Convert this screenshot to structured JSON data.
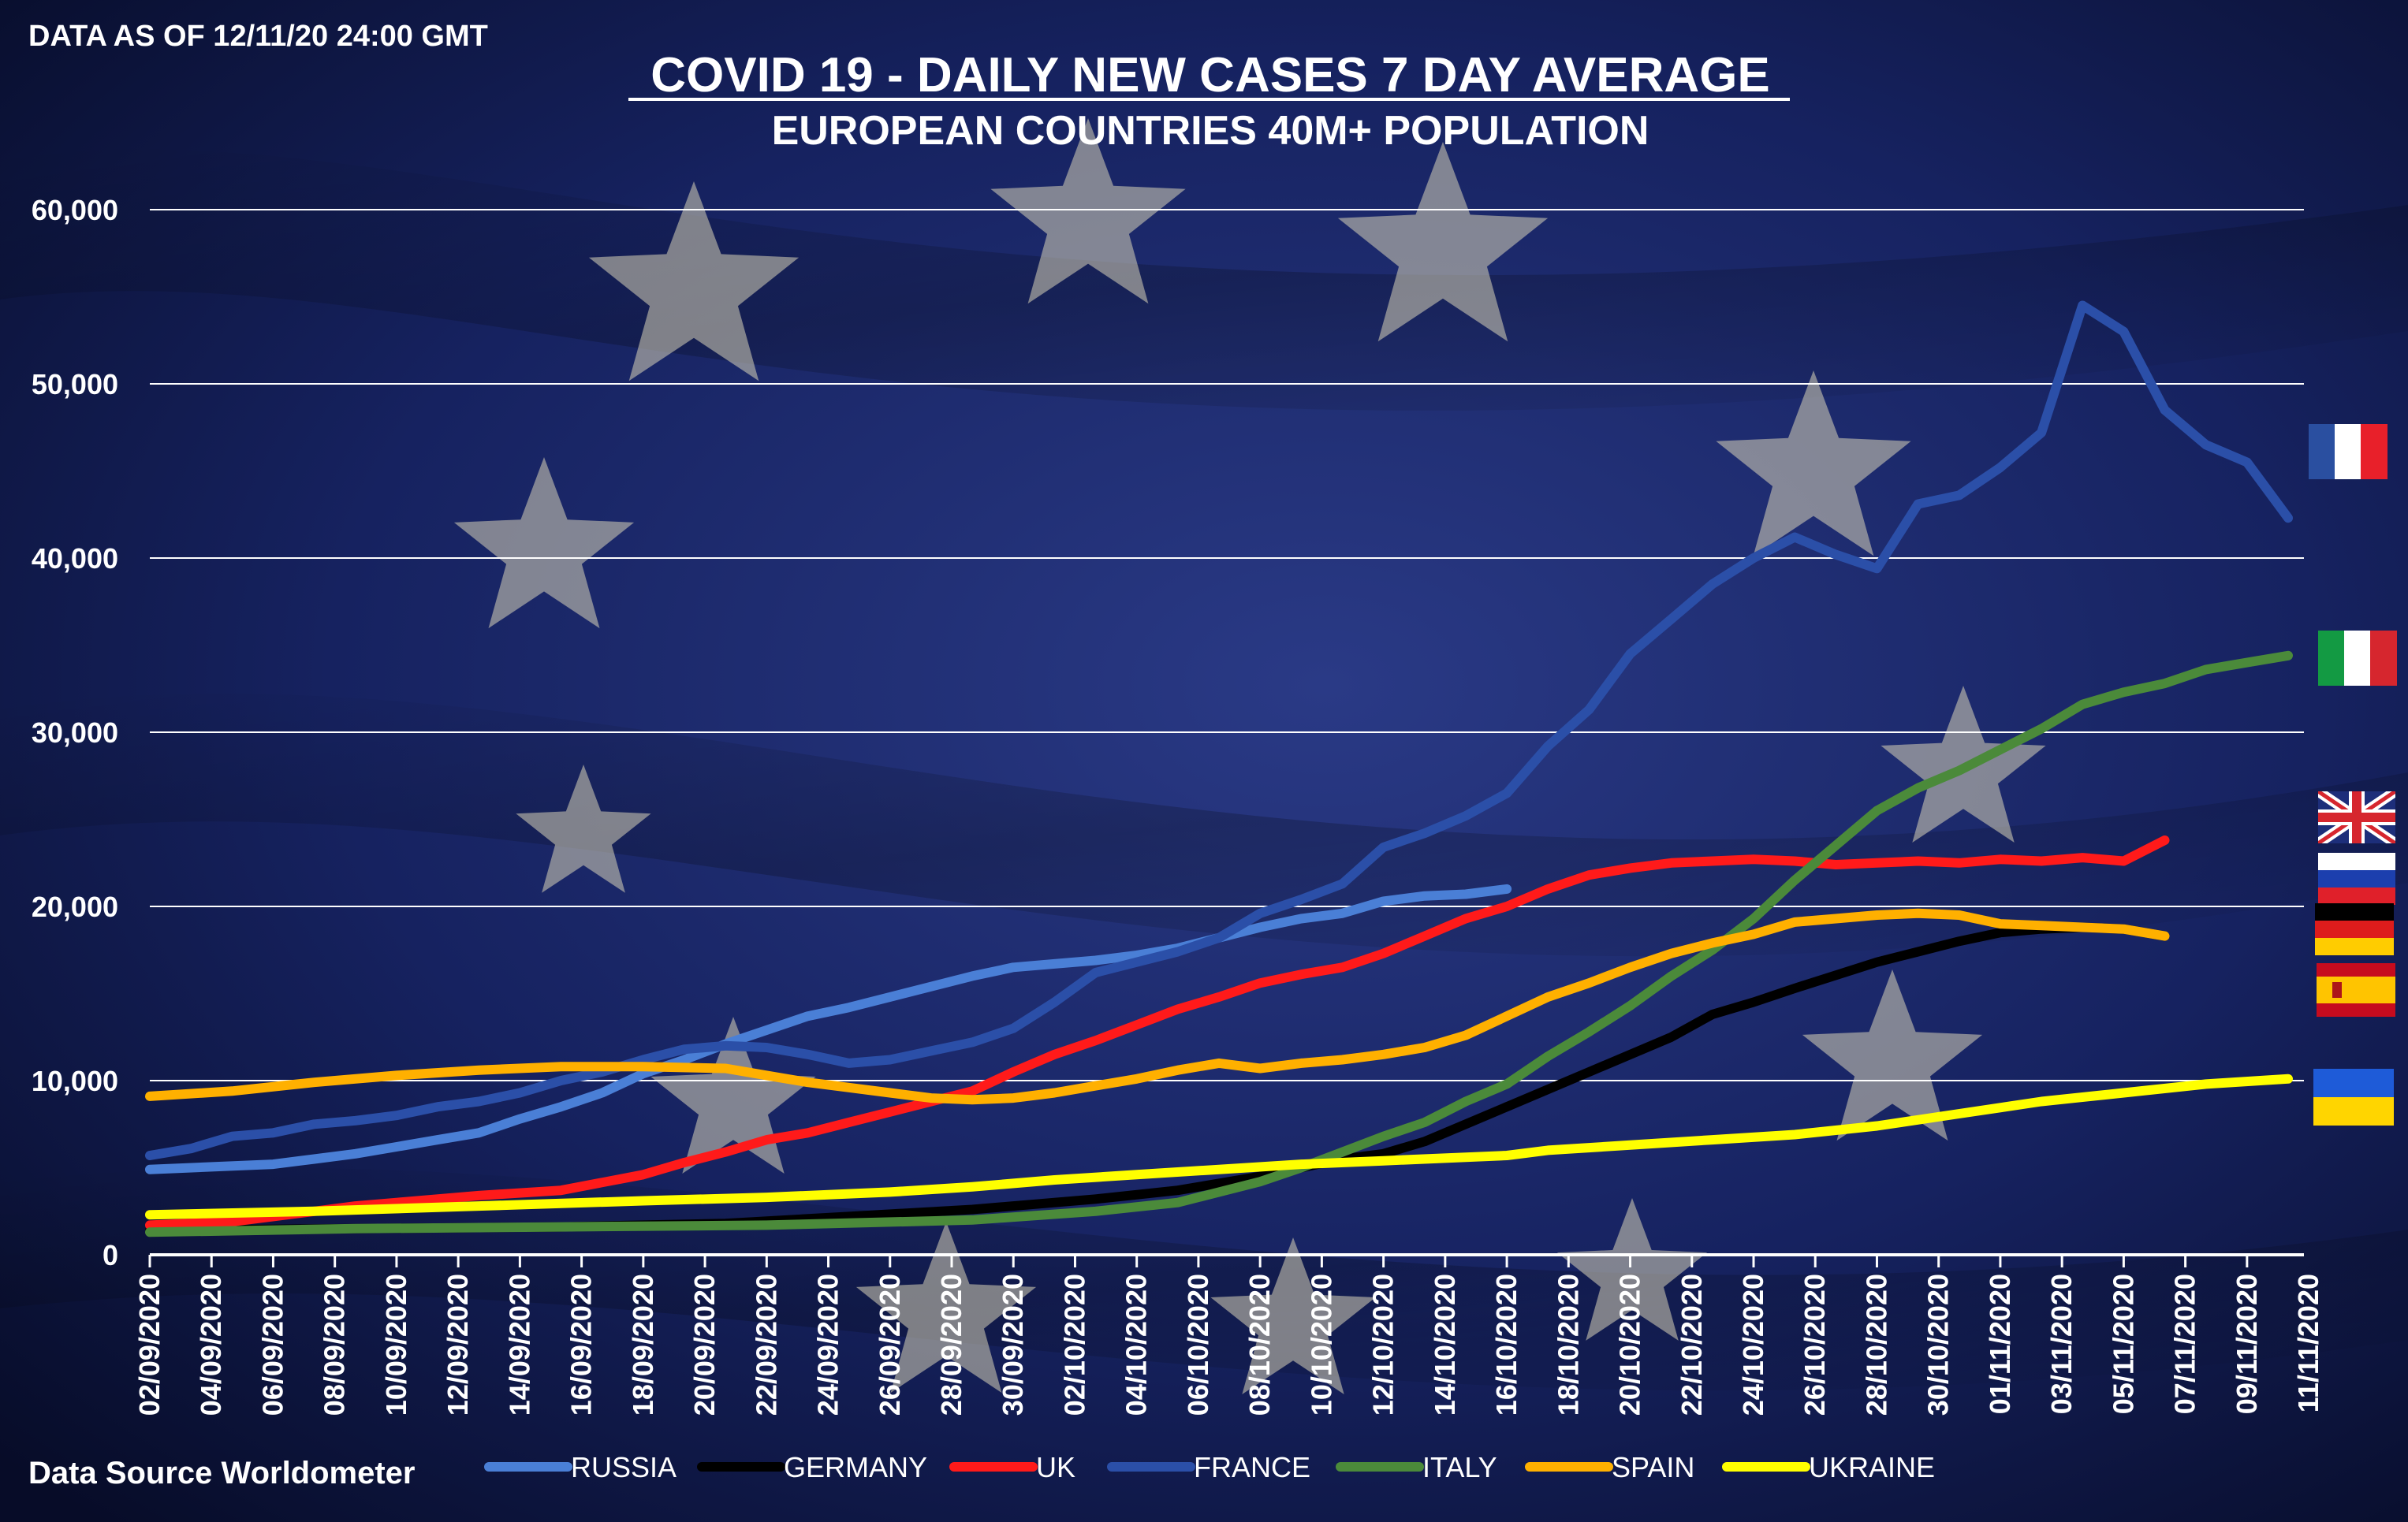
{
  "header": {
    "asof": "DATA AS OF 12/11/20 24:00 GMT",
    "title": "COVID 19 - DAILY NEW CASES 7 DAY AVERAGE",
    "subtitle": "EUROPEAN COUNTRIES 40M+ POPULATION"
  },
  "footer": {
    "source": "Data Source Worldometer"
  },
  "colors": {
    "background": "#0f1a44",
    "gridline": "#ffffff",
    "text": "#ffffff",
    "star": "#d8d4b8"
  },
  "flags": [
    {
      "country": "France",
      "icon": "france-flag-icon"
    },
    {
      "country": "Italy",
      "icon": "italy-flag-icon"
    },
    {
      "country": "UK",
      "icon": "uk-flag-icon"
    },
    {
      "country": "Russia",
      "icon": "russia-flag-icon"
    },
    {
      "country": "Germany",
      "icon": "germany-flag-icon"
    },
    {
      "country": "Spain",
      "icon": "spain-flag-icon"
    },
    {
      "country": "Ukraine",
      "icon": "ukraine-flag-icon"
    }
  ],
  "chart_data": {
    "type": "line",
    "title": "COVID 19 - DAILY NEW CASES 7 DAY AVERAGE",
    "subtitle": "EUROPEAN COUNTRIES 40M+ POPULATION",
    "xlabel": "",
    "ylabel": "",
    "ylim": [
      0,
      60000
    ],
    "yticks": [
      0,
      10000,
      20000,
      30000,
      40000,
      50000,
      60000
    ],
    "ytick_labels": [
      "0",
      "10,000",
      "20,000",
      "30,000",
      "40,000",
      "50,000",
      "60,000"
    ],
    "grid": true,
    "legend_position": "bottom",
    "x_tick_labels": [
      "02/09/2020",
      "04/09/2020",
      "06/09/2020",
      "08/09/2020",
      "10/09/2020",
      "12/09/2020",
      "14/09/2020",
      "16/09/2020",
      "18/09/2020",
      "20/09/2020",
      "22/09/2020",
      "24/09/2020",
      "26/09/2020",
      "28/09/2020",
      "30/09/2020",
      "02/10/2020",
      "04/10/2020",
      "06/10/2020",
      "08/10/2020",
      "10/10/2020",
      "12/10/2020",
      "14/10/2020",
      "16/10/2020",
      "18/10/2020",
      "20/10/2020",
      "22/10/2020",
      "24/10/2020",
      "26/10/2020",
      "28/10/2020",
      "30/10/2020",
      "01/11/2020",
      "03/11/2020",
      "05/11/2020",
      "07/11/2020",
      "09/11/2020",
      "11/11/2020"
    ],
    "series": [
      {
        "name": "RUSSIA",
        "color": "#4a7fd6",
        "width": 12,
        "anchors": [
          [
            0,
            4900
          ],
          [
            6,
            5200
          ],
          [
            8,
            5500
          ],
          [
            10,
            5800
          ],
          [
            12,
            6200
          ],
          [
            14,
            6600
          ],
          [
            16,
            7000
          ],
          [
            18,
            7800
          ],
          [
            20,
            8500
          ],
          [
            22,
            9300
          ],
          [
            24,
            10400
          ],
          [
            26,
            11200
          ],
          [
            28,
            12100
          ],
          [
            30,
            12900
          ],
          [
            32,
            13700
          ],
          [
            34,
            14200
          ],
          [
            36,
            14800
          ],
          [
            38,
            15400
          ],
          [
            40,
            16000
          ],
          [
            42,
            16500
          ],
          [
            44,
            16700
          ],
          [
            46,
            16900
          ],
          [
            48,
            17200
          ],
          [
            50,
            17600
          ],
          [
            52,
            18200
          ],
          [
            54,
            18800
          ],
          [
            56,
            19300
          ],
          [
            58,
            19600
          ],
          [
            60,
            20300
          ],
          [
            62,
            20600
          ],
          [
            64,
            20700
          ],
          [
            66,
            21000
          ]
        ]
      },
      {
        "name": "GERMANY",
        "color": "#000000",
        "width": 12,
        "anchors": [
          [
            0,
            1400
          ],
          [
            10,
            1500
          ],
          [
            20,
            1600
          ],
          [
            28,
            1800
          ],
          [
            34,
            2200
          ],
          [
            40,
            2600
          ],
          [
            46,
            3200
          ],
          [
            50,
            3700
          ],
          [
            54,
            4500
          ],
          [
            58,
            5500
          ],
          [
            60,
            5800
          ],
          [
            62,
            6500
          ],
          [
            66,
            8500
          ],
          [
            70,
            10500
          ],
          [
            74,
            12500
          ],
          [
            76,
            13800
          ],
          [
            78,
            14500
          ],
          [
            80,
            15300
          ],
          [
            84,
            16800
          ],
          [
            86,
            17400
          ],
          [
            88,
            18000
          ],
          [
            90,
            18500
          ],
          [
            92,
            18700
          ],
          [
            94,
            18800
          ],
          [
            96,
            18700
          ],
          [
            98,
            18300
          ]
        ]
      },
      {
        "name": "UK",
        "color": "#ff1a1a",
        "width": 12,
        "anchors": [
          [
            0,
            1700
          ],
          [
            4,
            1900
          ],
          [
            8,
            2500
          ],
          [
            10,
            2800
          ],
          [
            12,
            3000
          ],
          [
            16,
            3400
          ],
          [
            20,
            3700
          ],
          [
            24,
            4600
          ],
          [
            26,
            5300
          ],
          [
            28,
            5900
          ],
          [
            30,
            6600
          ],
          [
            32,
            7000
          ],
          [
            34,
            7600
          ],
          [
            36,
            8200
          ],
          [
            38,
            8800
          ],
          [
            40,
            9400
          ],
          [
            42,
            10500
          ],
          [
            44,
            11500
          ],
          [
            46,
            12300
          ],
          [
            48,
            13200
          ],
          [
            50,
            14100
          ],
          [
            52,
            14800
          ],
          [
            54,
            15600
          ],
          [
            56,
            16100
          ],
          [
            58,
            16500
          ],
          [
            60,
            17300
          ],
          [
            62,
            18300
          ],
          [
            64,
            19300
          ],
          [
            66,
            20000
          ],
          [
            68,
            21000
          ],
          [
            70,
            21800
          ],
          [
            72,
            22200
          ],
          [
            74,
            22500
          ],
          [
            76,
            22600
          ],
          [
            78,
            22700
          ],
          [
            80,
            22600
          ],
          [
            82,
            22400
          ],
          [
            84,
            22500
          ],
          [
            86,
            22600
          ],
          [
            88,
            22500
          ],
          [
            90,
            22700
          ],
          [
            92,
            22600
          ],
          [
            94,
            22800
          ],
          [
            96,
            22600
          ],
          [
            98,
            23800
          ]
        ]
      },
      {
        "name": "FRANCE",
        "color": "#2b4fa8",
        "width": 12,
        "anchors": [
          [
            0,
            5700
          ],
          [
            2,
            6100
          ],
          [
            4,
            6800
          ],
          [
            6,
            7000
          ],
          [
            8,
            7500
          ],
          [
            10,
            7700
          ],
          [
            12,
            8000
          ],
          [
            14,
            8500
          ],
          [
            16,
            8800
          ],
          [
            18,
            9300
          ],
          [
            20,
            10000
          ],
          [
            22,
            10500
          ],
          [
            24,
            11200
          ],
          [
            26,
            11800
          ],
          [
            28,
            12000
          ],
          [
            30,
            11900
          ],
          [
            32,
            11500
          ],
          [
            34,
            11000
          ],
          [
            36,
            11200
          ],
          [
            38,
            11700
          ],
          [
            40,
            12200
          ],
          [
            42,
            13000
          ],
          [
            44,
            14500
          ],
          [
            46,
            16200
          ],
          [
            48,
            16800
          ],
          [
            50,
            17400
          ],
          [
            52,
            18200
          ],
          [
            54,
            19600
          ],
          [
            56,
            20400
          ],
          [
            58,
            21300
          ],
          [
            60,
            23400
          ],
          [
            62,
            24200
          ],
          [
            64,
            25200
          ],
          [
            66,
            26500
          ],
          [
            68,
            29200
          ],
          [
            70,
            31300
          ],
          [
            72,
            34500
          ],
          [
            74,
            36500
          ],
          [
            76,
            38500
          ],
          [
            78,
            40000
          ],
          [
            80,
            41200
          ],
          [
            82,
            40200
          ],
          [
            84,
            39400
          ],
          [
            86,
            43100
          ],
          [
            88,
            43600
          ],
          [
            90,
            45200
          ],
          [
            92,
            47200
          ],
          [
            94,
            54500
          ],
          [
            96,
            53000
          ],
          [
            98,
            48500
          ],
          [
            100,
            46500
          ],
          [
            102,
            45500
          ],
          [
            104,
            42300
          ]
        ]
      },
      {
        "name": "ITALY",
        "color": "#4b8a3a",
        "width": 12,
        "anchors": [
          [
            0,
            1300
          ],
          [
            10,
            1500
          ],
          [
            20,
            1600
          ],
          [
            30,
            1700
          ],
          [
            40,
            2000
          ],
          [
            46,
            2500
          ],
          [
            50,
            3000
          ],
          [
            52,
            3600
          ],
          [
            54,
            4200
          ],
          [
            56,
            5000
          ],
          [
            58,
            5900
          ],
          [
            60,
            6800
          ],
          [
            62,
            7600
          ],
          [
            64,
            8800
          ],
          [
            66,
            9800
          ],
          [
            68,
            11400
          ],
          [
            70,
            12800
          ],
          [
            72,
            14300
          ],
          [
            74,
            16000
          ],
          [
            76,
            17500
          ],
          [
            78,
            19300
          ],
          [
            80,
            21500
          ],
          [
            82,
            23500
          ],
          [
            84,
            25500
          ],
          [
            86,
            26800
          ],
          [
            88,
            27800
          ],
          [
            90,
            29000
          ],
          [
            92,
            30200
          ],
          [
            94,
            31600
          ],
          [
            96,
            32300
          ],
          [
            98,
            32800
          ],
          [
            100,
            33600
          ],
          [
            102,
            34000
          ],
          [
            104,
            34400
          ]
        ]
      },
      {
        "name": "SPAIN",
        "color": "#ffb000",
        "width": 12,
        "anchors": [
          [
            0,
            9100
          ],
          [
            4,
            9400
          ],
          [
            8,
            9900
          ],
          [
            12,
            10300
          ],
          [
            16,
            10600
          ],
          [
            20,
            10800
          ],
          [
            24,
            10800
          ],
          [
            28,
            10700
          ],
          [
            30,
            10300
          ],
          [
            32,
            9900
          ],
          [
            34,
            9600
          ],
          [
            36,
            9300
          ],
          [
            38,
            9000
          ],
          [
            40,
            8900
          ],
          [
            42,
            9000
          ],
          [
            44,
            9300
          ],
          [
            46,
            9700
          ],
          [
            48,
            10100
          ],
          [
            50,
            10600
          ],
          [
            52,
            11000
          ],
          [
            54,
            10700
          ],
          [
            56,
            11000
          ],
          [
            58,
            11200
          ],
          [
            60,
            11500
          ],
          [
            62,
            11900
          ],
          [
            64,
            12600
          ],
          [
            66,
            13700
          ],
          [
            68,
            14800
          ],
          [
            70,
            15600
          ],
          [
            72,
            16500
          ],
          [
            74,
            17300
          ],
          [
            76,
            17900
          ],
          [
            78,
            18400
          ],
          [
            80,
            19100
          ],
          [
            82,
            19300
          ],
          [
            84,
            19500
          ],
          [
            86,
            19600
          ],
          [
            88,
            19500
          ],
          [
            90,
            19000
          ],
          [
            92,
            18900
          ],
          [
            94,
            18800
          ],
          [
            96,
            18700
          ],
          [
            98,
            18300
          ]
        ]
      },
      {
        "name": "UKRAINE",
        "color": "#ffff00",
        "width": 12,
        "anchors": [
          [
            0,
            2300
          ],
          [
            8,
            2500
          ],
          [
            16,
            2800
          ],
          [
            24,
            3100
          ],
          [
            30,
            3300
          ],
          [
            36,
            3600
          ],
          [
            40,
            3900
          ],
          [
            44,
            4300
          ],
          [
            48,
            4600
          ],
          [
            52,
            4900
          ],
          [
            56,
            5200
          ],
          [
            60,
            5400
          ],
          [
            64,
            5600
          ],
          [
            66,
            5700
          ],
          [
            68,
            6000
          ],
          [
            72,
            6300
          ],
          [
            76,
            6600
          ],
          [
            80,
            6900
          ],
          [
            84,
            7400
          ],
          [
            88,
            8100
          ],
          [
            92,
            8800
          ],
          [
            96,
            9300
          ],
          [
            100,
            9800
          ],
          [
            104,
            10100
          ]
        ]
      }
    ],
    "x_index_range": [
      0,
      104
    ],
    "x_label_spacing": 3
  }
}
